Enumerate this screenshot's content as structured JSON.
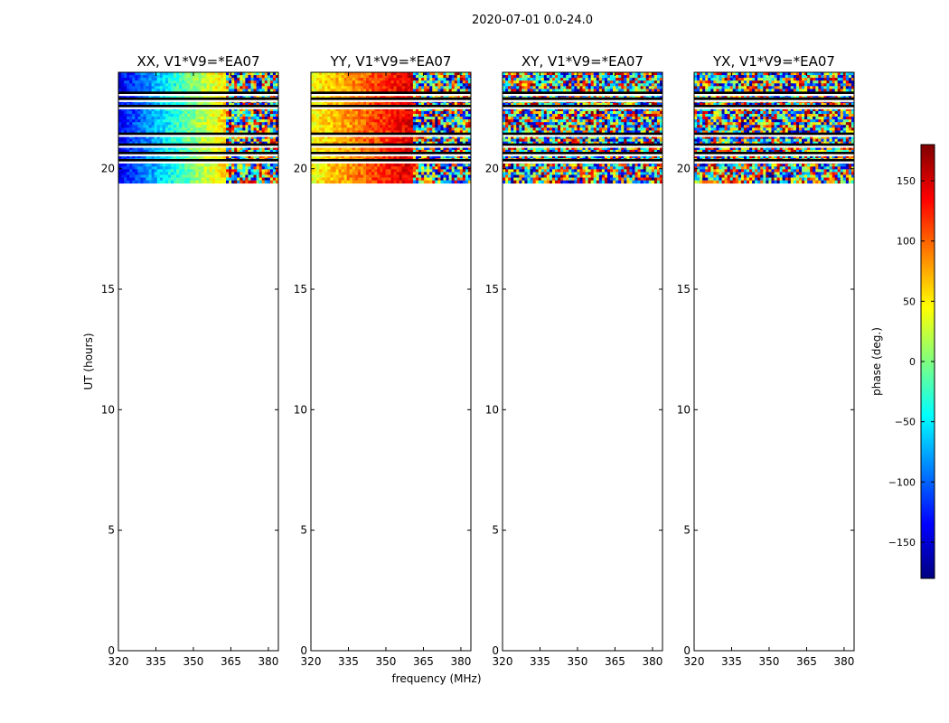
{
  "figure": {
    "suptitle": "2020-07-01 0.0-24.0"
  },
  "chart_data": {
    "type": "heatmap",
    "xlabel": "frequency (MHz)",
    "ylabel": "UT (hours)",
    "xlim": [
      320,
      384
    ],
    "ylim": [
      0,
      24
    ],
    "xticks": [
      320,
      335,
      350,
      365,
      380
    ],
    "yticks": [
      0,
      5,
      10,
      15,
      20
    ],
    "data_time_range": [
      19.4,
      24
    ],
    "flagged_time_bands": [
      [
        23.1,
        23.2
      ],
      [
        22.85,
        22.95
      ],
      [
        22.55,
        22.65
      ],
      [
        21.4,
        21.5
      ],
      [
        20.95,
        21.05
      ],
      [
        20.6,
        20.7
      ],
      [
        20.3,
        20.4
      ]
    ],
    "panels": [
      {
        "title": "XX, V1*V9=*EA07",
        "phase_pattern": "structured",
        "phase_start_deg": -140,
        "phase_end_deg": 60,
        "noise_above_MHz": 363
      },
      {
        "title": "YY, V1*V9=*EA07",
        "phase_pattern": "structured",
        "phase_start_deg": 40,
        "phase_end_deg": 150,
        "noise_above_MHz": 361
      },
      {
        "title": "XY, V1*V9=*EA07",
        "phase_pattern": "noise"
      },
      {
        "title": "YX, V1*V9=*EA07",
        "phase_pattern": "noise"
      }
    ],
    "colorbar": {
      "label": "phase (deg.)",
      "range": [
        -180,
        180
      ],
      "ticks": [
        -150,
        -100,
        -50,
        0,
        50,
        100,
        150
      ],
      "tick_labels": [
        "−150",
        "−100",
        "−50",
        "0",
        "50",
        "100",
        "150"
      ],
      "colormap": "jet"
    }
  }
}
